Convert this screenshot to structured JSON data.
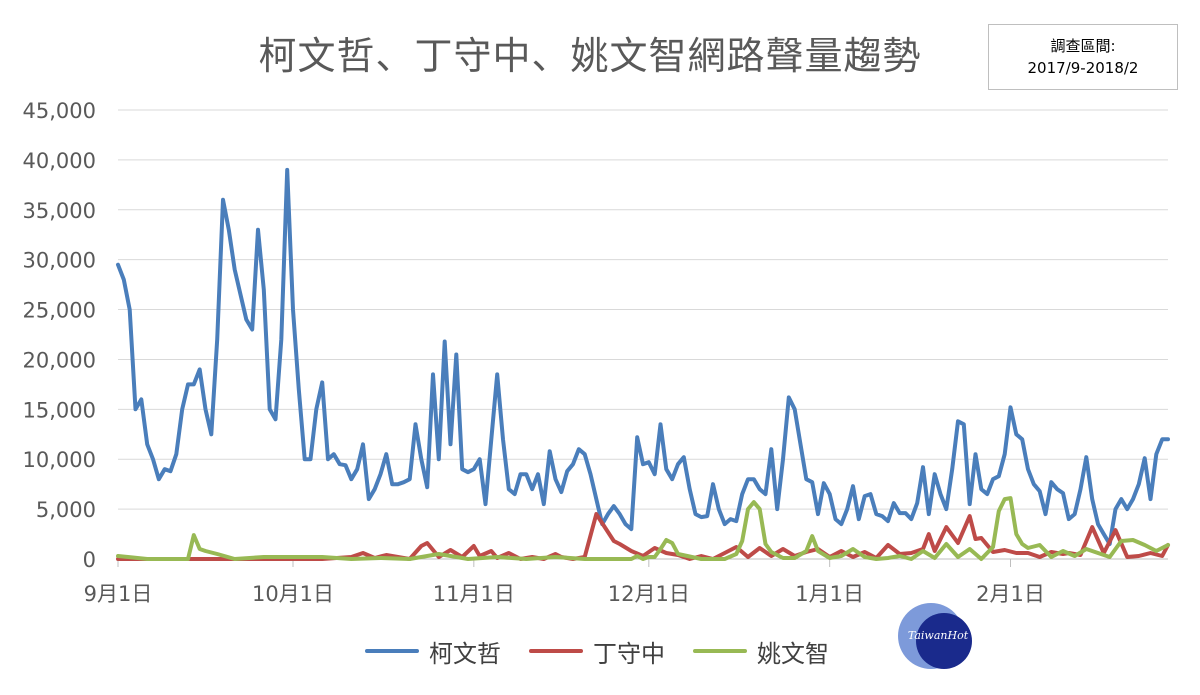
{
  "header": {
    "title": "柯文哲、丁守中、姚文智網路聲量趨勢",
    "period_label": "調查區間:",
    "period_value": "2017/9-2018/2"
  },
  "watermark": {
    "text": "TaiwanHot"
  },
  "chart_data": {
    "type": "line",
    "title": "柯文哲、丁守中、姚文智網路聲量趨勢",
    "xlabel": "",
    "ylabel": "",
    "x_ticks": [
      "9月1日",
      "10月1日",
      "11月1日",
      "12月1日",
      "1月1日",
      "2月1日"
    ],
    "y_ticks": [
      "0",
      "5,000",
      "10,000",
      "15,000",
      "20,000",
      "25,000",
      "30,000",
      "35,000",
      "40,000",
      "45,000"
    ],
    "ylim": [
      0,
      45000
    ],
    "x_start_tick_day_index": [
      0,
      30,
      61,
      91,
      122,
      153
    ],
    "x_domain_days": [
      0,
      180
    ],
    "grid": true,
    "legend_position": "bottom",
    "colors": {
      "柯文哲": "#4a7ebb",
      "丁守中": "#be4b48",
      "姚文智": "#98b954"
    },
    "series": [
      {
        "name": "柯文哲",
        "color": "#4a7ebb",
        "x": [
          0,
          1,
          2,
          3,
          4,
          5,
          6,
          7,
          8,
          9,
          10,
          11,
          12,
          13,
          14,
          15,
          16,
          17,
          18,
          19,
          20,
          21,
          22,
          23,
          24,
          25,
          26,
          27,
          28,
          29,
          30,
          31,
          32,
          33,
          34,
          35,
          36,
          37,
          38,
          39,
          40,
          41,
          42,
          43,
          44,
          45,
          46,
          47,
          48,
          49,
          50,
          51,
          52,
          53,
          54,
          55,
          56,
          57,
          58,
          59,
          60,
          61,
          62,
          63,
          64,
          65,
          66,
          67,
          68,
          69,
          70,
          71,
          72,
          73,
          74,
          75,
          76,
          77,
          78,
          79,
          80,
          81,
          82,
          83,
          84,
          85,
          86,
          87,
          88,
          89,
          90,
          91,
          92,
          93,
          94,
          95,
          96,
          97,
          98,
          99,
          100,
          101,
          102,
          103,
          104,
          105,
          106,
          107,
          108,
          109,
          110,
          111,
          112,
          113,
          114,
          115,
          116,
          117,
          118,
          119,
          120,
          121,
          122,
          123,
          124,
          125,
          126,
          127,
          128,
          129,
          130,
          131,
          132,
          133,
          134,
          135,
          136,
          137,
          138,
          139,
          140,
          141,
          142,
          143,
          144,
          145,
          146,
          147,
          148,
          149,
          150,
          151,
          152,
          153,
          154,
          155,
          156,
          157,
          158,
          159,
          160,
          161,
          162,
          163,
          164,
          165,
          166,
          167,
          168,
          169,
          170,
          171,
          172,
          173,
          174,
          175,
          176,
          177,
          178,
          179,
          180
        ],
        "values": [
          29500,
          28000,
          25000,
          15000,
          16000,
          11500,
          10000,
          8000,
          9000,
          8800,
          10500,
          15000,
          17500,
          17500,
          19000,
          15000,
          12500,
          22000,
          36000,
          33000,
          29000,
          26500,
          24000,
          23000,
          33000,
          27000,
          15000,
          14000,
          22000,
          39000,
          25000,
          17000,
          10000,
          10000,
          15000,
          17700,
          10000,
          10500,
          9500,
          9400,
          8000,
          9000,
          11500,
          6000,
          7000,
          8500,
          10500,
          7500,
          7500,
          7700,
          8000,
          13500,
          10000,
          7200,
          18500,
          10000,
          21800,
          11500,
          20500,
          9000,
          8700,
          9000,
          10000,
          5500,
          12000,
          18500,
          12000,
          7000,
          6500,
          8500,
          8500,
          7000,
          8500,
          5500,
          10800,
          8000,
          6700,
          8800,
          9500,
          11000,
          10500,
          8500,
          6000,
          3500,
          4500,
          5300,
          4500,
          3500,
          3000,
          12200,
          9500,
          9700,
          8500,
          13500,
          9000,
          8000,
          9500,
          10200,
          7000,
          4500,
          4200,
          4300,
          7500,
          5000,
          3500,
          4000,
          3800,
          6500,
          8000,
          8000,
          7000,
          6500,
          11000,
          5000,
          10000,
          16200,
          15000,
          11500,
          8000,
          7700,
          4500,
          7600,
          6500,
          4000,
          3500,
          5000,
          7300,
          4000,
          6300,
          6500,
          4500,
          4300,
          3800,
          5600,
          4600,
          4600,
          4000,
          5600,
          9200,
          4500,
          8500,
          6500,
          5000,
          9000,
          13800,
          13500,
          5500,
          10500,
          7000,
          6500,
          8000,
          8300,
          10500,
          15200,
          12500,
          12000,
          9000,
          7500,
          6800,
          4500,
          7700,
          7000,
          6600,
          4000,
          4500,
          7000,
          10200,
          6000,
          3500,
          2500,
          1500,
          5000,
          6000,
          5000,
          6000,
          7500,
          10100,
          6000,
          10500,
          12000,
          12000
        ],
        "note_unused": ""
      },
      {
        "name": "丁守中",
        "color": "#be4b48",
        "x": [
          0,
          5,
          10,
          15,
          20,
          25,
          30,
          35,
          40,
          42,
          44,
          46,
          48,
          50,
          52,
          53,
          55,
          57,
          59,
          61,
          62,
          64,
          65,
          67,
          69,
          71,
          73,
          75,
          76,
          78,
          80,
          82,
          85,
          86,
          88,
          90,
          92,
          94,
          96,
          98,
          100,
          102,
          104,
          106,
          108,
          110,
          112,
          114,
          116,
          118,
          120,
          122,
          124,
          126,
          128,
          130,
          132,
          134,
          136,
          138,
          139,
          140,
          142,
          144,
          146,
          147,
          148,
          150,
          152,
          154,
          156,
          158,
          160,
          162,
          163,
          165,
          167,
          169,
          171,
          173,
          175,
          177,
          179,
          180
        ],
        "values": [
          0,
          0,
          0,
          0,
          0,
          0,
          0,
          0,
          200,
          600,
          100,
          400,
          200,
          0,
          1300,
          1600,
          200,
          900,
          200,
          1300,
          300,
          800,
          100,
          600,
          0,
          200,
          0,
          500,
          200,
          0,
          200,
          4500,
          1800,
          1500,
          800,
          300,
          1100,
          600,
          400,
          0,
          300,
          0,
          600,
          1200,
          200,
          1100,
          300,
          1000,
          300,
          700,
          1000,
          200,
          800,
          200,
          700,
          100,
          1400,
          500,
          600,
          1000,
          2500,
          800,
          3200,
          1600,
          4300,
          2000,
          2100,
          700,
          900,
          600,
          600,
          200,
          700,
          500,
          600,
          400,
          3200,
          600,
          2900,
          200,
          300,
          600,
          300,
          1400
        ]
      },
      {
        "name": "姚文智",
        "color": "#98b954",
        "x": [
          0,
          5,
          10,
          12,
          13,
          14,
          15,
          17,
          20,
          25,
          30,
          35,
          40,
          45,
          50,
          55,
          60,
          65,
          70,
          75,
          80,
          85,
          88,
          89,
          90,
          91,
          92,
          93,
          94,
          95,
          96,
          100,
          104,
          106,
          107,
          108,
          109,
          110,
          111,
          112,
          114,
          116,
          118,
          119,
          120,
          122,
          124,
          126,
          128,
          130,
          132,
          134,
          136,
          138,
          140,
          142,
          144,
          146,
          148,
          150,
          151,
          152,
          153,
          154,
          155,
          156,
          158,
          160,
          162,
          164,
          166,
          168,
          170,
          172,
          174,
          176,
          178,
          180
        ],
        "values": [
          300,
          0,
          0,
          0,
          2400,
          1000,
          800,
          500,
          0,
          200,
          200,
          200,
          0,
          100,
          0,
          500,
          0,
          200,
          0,
          200,
          0,
          0,
          0,
          300,
          0,
          200,
          200,
          1000,
          1900,
          1600,
          500,
          0,
          0,
          500,
          1800,
          5000,
          5700,
          5000,
          1500,
          700,
          100,
          100,
          800,
          2300,
          800,
          100,
          300,
          1000,
          200,
          0,
          100,
          300,
          0,
          800,
          100,
          1500,
          200,
          1000,
          0,
          1200,
          4800,
          6000,
          6100,
          2500,
          1500,
          1100,
          1400,
          200,
          800,
          300,
          1000,
          600,
          200,
          1800,
          1900,
          1400,
          800,
          1400
        ]
      }
    ]
  }
}
